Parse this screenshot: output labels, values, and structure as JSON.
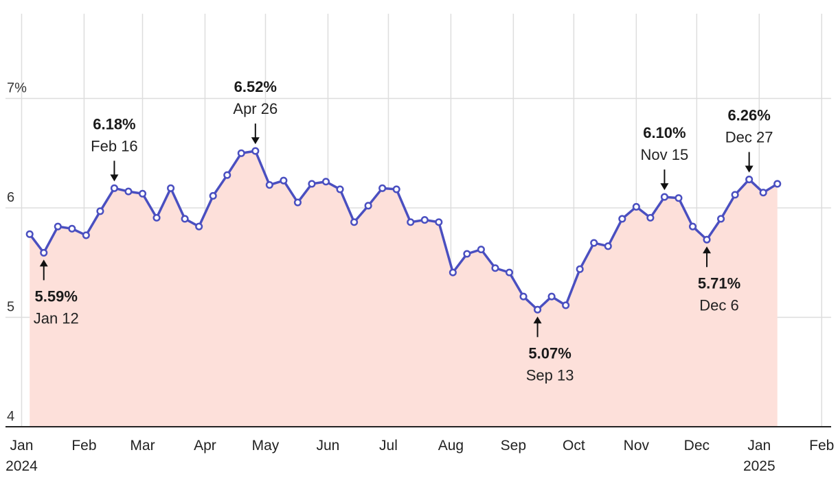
{
  "chart_data": {
    "type": "line",
    "title": "",
    "xlabel": "",
    "ylabel": "",
    "ylim": [
      4,
      7.9
    ],
    "xlim": [
      "2023-12-24",
      "2025-02-05"
    ],
    "grid": true,
    "fill_under_line": true,
    "colors": {
      "line": "#4a4fc0",
      "area": "#fde0da",
      "grid": "#dddddd",
      "axis": "#222222",
      "marker_fill": "#ffffff"
    },
    "y_ticks": [
      {
        "value": 4,
        "label": "4"
      },
      {
        "value": 5,
        "label": "5"
      },
      {
        "value": 6,
        "label": "6"
      },
      {
        "value": 7,
        "label": "7%"
      }
    ],
    "x_ticks": [
      {
        "date": "2024-01-01",
        "label": "Jan",
        "sublabel": "2024"
      },
      {
        "date": "2024-02-01",
        "label": "Feb"
      },
      {
        "date": "2024-03-01",
        "label": "Mar"
      },
      {
        "date": "2024-04-01",
        "label": "Apr"
      },
      {
        "date": "2024-05-01",
        "label": "May"
      },
      {
        "date": "2024-06-01",
        "label": "Jun"
      },
      {
        "date": "2024-07-01",
        "label": "Jul"
      },
      {
        "date": "2024-08-01",
        "label": "Aug"
      },
      {
        "date": "2024-09-01",
        "label": "Sep"
      },
      {
        "date": "2024-10-01",
        "label": "Oct"
      },
      {
        "date": "2024-11-01",
        "label": "Nov"
      },
      {
        "date": "2024-12-01",
        "label": "Dec"
      },
      {
        "date": "2025-01-01",
        "label": "Jan",
        "sublabel": "2025"
      },
      {
        "date": "2025-02-01",
        "label": "Feb"
      }
    ],
    "series": [
      {
        "x": [
          "2024-01-05",
          "2024-01-12",
          "2024-01-19",
          "2024-01-26",
          "2024-02-02",
          "2024-02-09",
          "2024-02-16",
          "2024-02-23",
          "2024-03-01",
          "2024-03-08",
          "2024-03-15",
          "2024-03-22",
          "2024-03-29",
          "2024-04-05",
          "2024-04-12",
          "2024-04-19",
          "2024-04-26",
          "2024-05-03",
          "2024-05-10",
          "2024-05-17",
          "2024-05-24",
          "2024-05-31",
          "2024-06-07",
          "2024-06-14",
          "2024-06-21",
          "2024-06-28",
          "2024-07-05",
          "2024-07-12",
          "2024-07-19",
          "2024-07-26",
          "2024-08-02",
          "2024-08-09",
          "2024-08-16",
          "2024-08-23",
          "2024-08-30",
          "2024-09-06",
          "2024-09-13",
          "2024-09-20",
          "2024-09-27",
          "2024-10-04",
          "2024-10-11",
          "2024-10-18",
          "2024-10-25",
          "2024-11-01",
          "2024-11-08",
          "2024-11-15",
          "2024-11-22",
          "2024-11-29",
          "2024-12-06",
          "2024-12-13",
          "2024-12-20",
          "2024-12-27",
          "2025-01-03",
          "2025-01-10"
        ],
        "values": [
          5.76,
          5.59,
          5.83,
          5.81,
          5.75,
          5.97,
          6.18,
          6.15,
          6.13,
          5.91,
          6.18,
          5.9,
          5.83,
          6.11,
          6.3,
          6.5,
          6.52,
          6.21,
          6.25,
          6.05,
          6.22,
          6.24,
          6.17,
          5.87,
          6.02,
          6.18,
          6.17,
          5.87,
          5.89,
          5.87,
          5.41,
          5.58,
          5.62,
          5.45,
          5.41,
          5.19,
          5.07,
          5.19,
          5.11,
          5.44,
          5.68,
          5.65,
          5.9,
          6.01,
          5.91,
          6.1,
          6.09,
          5.83,
          5.71,
          5.9,
          6.12,
          6.26,
          6.14,
          6.22
        ]
      }
    ],
    "annotations": [
      {
        "value_label": "5.59%",
        "date_label": "Jan 12",
        "x": "2024-01-12",
        "y": 5.59,
        "placement": "below"
      },
      {
        "value_label": "6.18%",
        "date_label": "Feb 16",
        "x": "2024-02-16",
        "y": 6.18,
        "placement": "above"
      },
      {
        "value_label": "6.52%",
        "date_label": "Apr 26",
        "x": "2024-04-26",
        "y": 6.52,
        "placement": "above"
      },
      {
        "value_label": "5.07%",
        "date_label": "Sep 13",
        "x": "2024-09-13",
        "y": 5.07,
        "placement": "below"
      },
      {
        "value_label": "6.10%",
        "date_label": "Nov 15",
        "x": "2024-11-15",
        "y": 6.1,
        "placement": "above"
      },
      {
        "value_label": "5.71%",
        "date_label": "Dec 6",
        "x": "2024-12-06",
        "y": 5.71,
        "placement": "below"
      },
      {
        "value_label": "6.26%",
        "date_label": "Dec 27",
        "x": "2024-12-27",
        "y": 6.26,
        "placement": "above"
      }
    ]
  }
}
